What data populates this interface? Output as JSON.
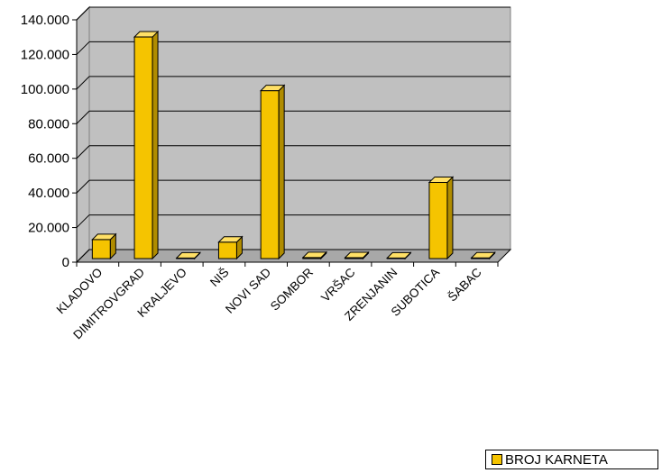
{
  "chart_data": {
    "type": "bar",
    "categories": [
      "KLADOVO",
      "DIMITROVGRAD",
      "KRALJEVO",
      "NIŠ",
      "NOVI SAD",
      "SOMBOR",
      "VRŠAC",
      "ZRENJANIN",
      "SUBOTICA",
      "ŠABAC"
    ],
    "series": [
      {
        "name": "BROJ KARNETA",
        "values": [
          11000,
          128000,
          300,
          9500,
          97000,
          600,
          500,
          300,
          44000,
          400
        ]
      }
    ],
    "yticks": [
      "0",
      "20.000",
      "40.000",
      "60.000",
      "80.000",
      "100.000",
      "120.000",
      "140.000"
    ],
    "ylim": [
      0,
      140000
    ],
    "grid": true,
    "legend_position": "bottom-right",
    "colors": {
      "bar_front": "#f5c400",
      "bar_side": "#b08c00",
      "bar_top": "#ffe066",
      "plot_bg": "#c0c0c0",
      "floor": "#a8a8a8"
    }
  }
}
